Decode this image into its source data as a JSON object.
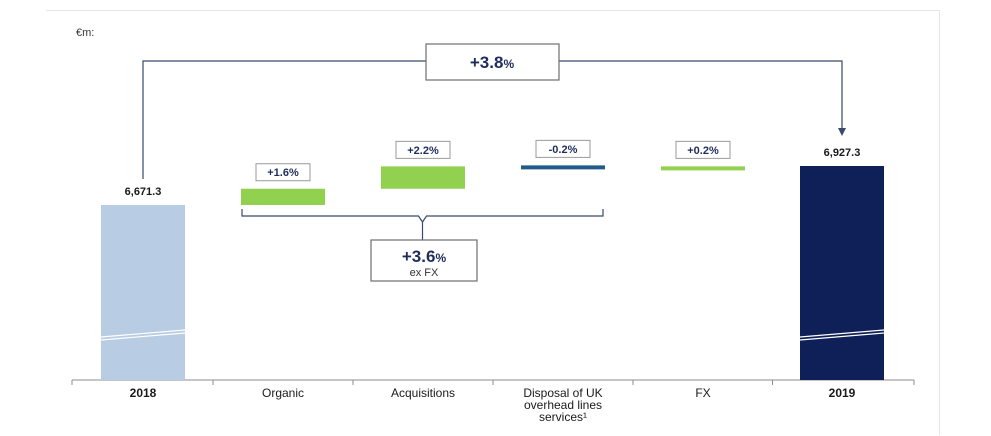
{
  "chart_data": {
    "type": "waterfall",
    "unit_label": "€m:",
    "categories": [
      "2018",
      "Organic",
      "Acquisitions",
      "Disposal of UK overhead lines services¹",
      "FX",
      "2019"
    ],
    "category_lines": [
      [
        "2018"
      ],
      [
        "Organic"
      ],
      [
        "Acquisitions"
      ],
      [
        "Disposal of UK",
        "overhead lines",
        "services¹"
      ],
      [
        "FX"
      ],
      [
        "2019"
      ]
    ],
    "category_bold": [
      true,
      false,
      false,
      false,
      false,
      true
    ],
    "steps": [
      {
        "label": "2018",
        "kind": "total",
        "value": 6671.3,
        "value_label": "6,671.3",
        "color": "#b8cce4"
      },
      {
        "label": "Organic",
        "kind": "delta",
        "pct_label": "+1.6%",
        "pct": 1.6,
        "color": "#92d050"
      },
      {
        "label": "Acquisitions",
        "kind": "delta",
        "pct_label": "+2.2%",
        "pct": 2.2,
        "color": "#92d050"
      },
      {
        "label": "Disposal of UK overhead lines services",
        "kind": "delta",
        "pct_label": "-0.2%",
        "pct": -0.2,
        "color": "#1f5c8a"
      },
      {
        "label": "FX",
        "kind": "delta",
        "pct_label": "+0.2%",
        "pct": 0.2,
        "color": "#92d050"
      },
      {
        "label": "2019",
        "kind": "total",
        "value": 6927.3,
        "value_label": "6,927.3",
        "color": "#0f1f57"
      }
    ],
    "total_change": {
      "main": "+3.8",
      "suffix": "%"
    },
    "ex_fx_change": {
      "main": "+3.6",
      "suffix": "%",
      "note": "ex FX"
    },
    "axis_break": true
  }
}
